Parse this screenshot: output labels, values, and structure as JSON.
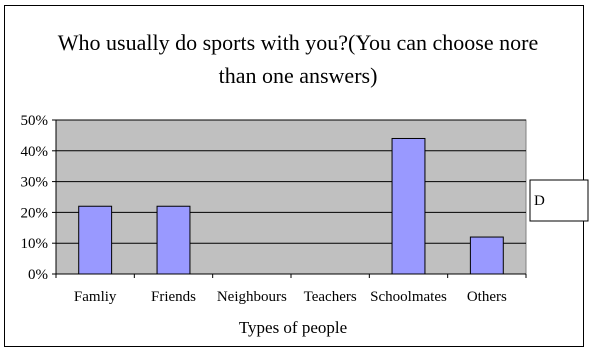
{
  "chart_data": {
    "type": "bar",
    "title_lines": [
      "Who usually do sports with you?(You can choose nore",
      "than one answers)"
    ],
    "categories": [
      "Famliy",
      "Friends",
      "Neighbours",
      "Teachers",
      "Schoolmates",
      "Others"
    ],
    "values": [
      22,
      22,
      0,
      0,
      44,
      12
    ],
    "xlabel": "Types of people",
    "ylabel": "",
    "ylim": [
      0,
      50
    ],
    "y_ticks": [
      "0%",
      "10%",
      "20%",
      "30%",
      "40%",
      "50%"
    ],
    "grid": true,
    "legend_position": "right",
    "legend_text": "D",
    "colors": {
      "bar_fill": "#9999ff",
      "bar_stroke": "#000000",
      "plot_bg": "#c0c0c0"
    }
  }
}
